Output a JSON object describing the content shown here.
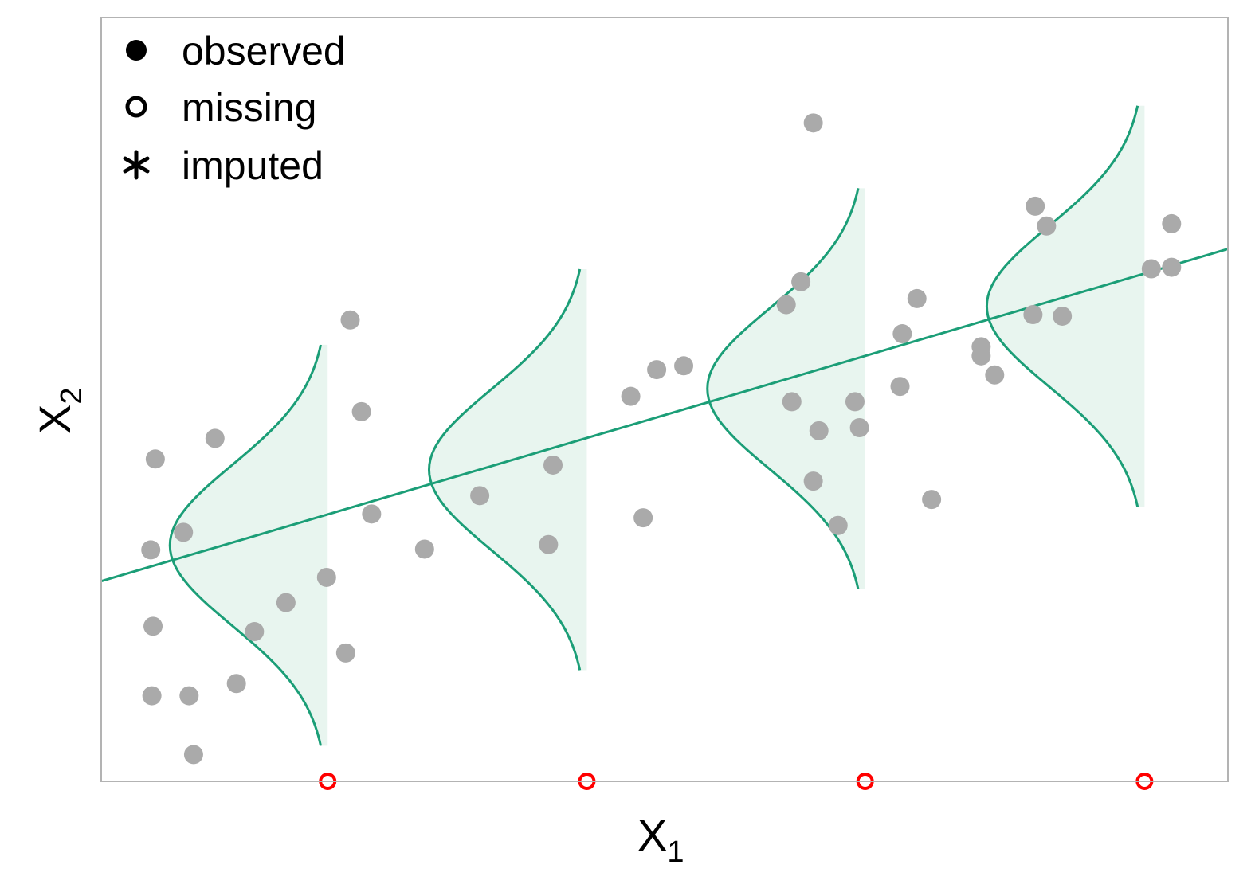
{
  "chart_data": {
    "type": "scatter",
    "xlabel": "X",
    "xlabel_subscript": "1",
    "ylabel": "X",
    "ylabel_subscript": "2",
    "xlim": [
      0,
      100
    ],
    "ylim": [
      0,
      100
    ],
    "grid": false,
    "tick_labels": false,
    "legend": {
      "position": "top-left",
      "entries": [
        {
          "label": "observed",
          "marker": "filled-circle"
        },
        {
          "label": "missing",
          "marker": "open-circle"
        },
        {
          "label": "imputed",
          "marker": "asterisk"
        }
      ]
    },
    "colors": {
      "observed": "#aaaaaa",
      "missing": "#ff0000",
      "regression": "#1b9e77",
      "density_fill": "#e8f5ef",
      "axes_border": "#b3b3b3"
    },
    "series": [
      {
        "marker": "filled-circle",
        "points": [
          [
            4.8,
            42.2
          ],
          [
            4.4,
            30.3
          ],
          [
            7.3,
            32.6
          ],
          [
            10.1,
            44.9
          ],
          [
            4.6,
            20.3
          ],
          [
            4.5,
            11.2
          ],
          [
            7.8,
            11.2
          ],
          [
            8.2,
            3.5
          ],
          [
            12.0,
            12.8
          ],
          [
            13.6,
            19.6
          ],
          [
            16.4,
            23.4
          ],
          [
            20.0,
            26.7
          ],
          [
            22.1,
            60.4
          ],
          [
            23.1,
            48.4
          ],
          [
            21.7,
            16.8
          ],
          [
            24.0,
            35.0
          ],
          [
            28.7,
            30.4
          ],
          [
            33.6,
            37.4
          ],
          [
            40.1,
            41.4
          ],
          [
            39.7,
            31.0
          ],
          [
            47.0,
            50.4
          ],
          [
            49.3,
            53.9
          ],
          [
            51.7,
            54.4
          ],
          [
            48.1,
            34.5
          ],
          [
            60.8,
            62.4
          ],
          [
            62.1,
            65.4
          ],
          [
            61.3,
            49.7
          ],
          [
            66.9,
            49.7
          ],
          [
            63.7,
            45.9
          ],
          [
            67.3,
            46.3
          ],
          [
            63.2,
            39.3
          ],
          [
            65.4,
            33.5
          ],
          [
            72.4,
            63.2
          ],
          [
            71.1,
            58.6
          ],
          [
            70.9,
            51.7
          ],
          [
            73.7,
            36.9
          ],
          [
            78.1,
            56.9
          ],
          [
            78.1,
            55.7
          ],
          [
            79.3,
            53.2
          ],
          [
            82.9,
            75.3
          ],
          [
            83.9,
            72.7
          ],
          [
            82.7,
            61.1
          ],
          [
            85.3,
            60.9
          ],
          [
            93.2,
            67.1
          ],
          [
            95.0,
            67.3
          ],
          [
            95.0,
            73.0
          ],
          [
            63.2,
            86.2
          ]
        ]
      },
      {
        "marker": "open-circle",
        "points": [
          [
            20.1,
            0
          ],
          [
            43.1,
            0
          ],
          [
            67.8,
            0
          ],
          [
            92.6,
            0
          ]
        ]
      }
    ],
    "regression_line": {
      "x": [
        0,
        100
      ],
      "y": [
        26.2,
        69.7
      ]
    },
    "conditional_densities": [
      {
        "x": 20.1,
        "mean": 30.9,
        "sd": 10.5
      },
      {
        "x": 43.1,
        "mean": 40.8,
        "sd": 10.5
      },
      {
        "x": 67.8,
        "mean": 51.4,
        "sd": 10.5
      },
      {
        "x": 92.6,
        "mean": 62.2,
        "sd": 10.5
      }
    ]
  }
}
